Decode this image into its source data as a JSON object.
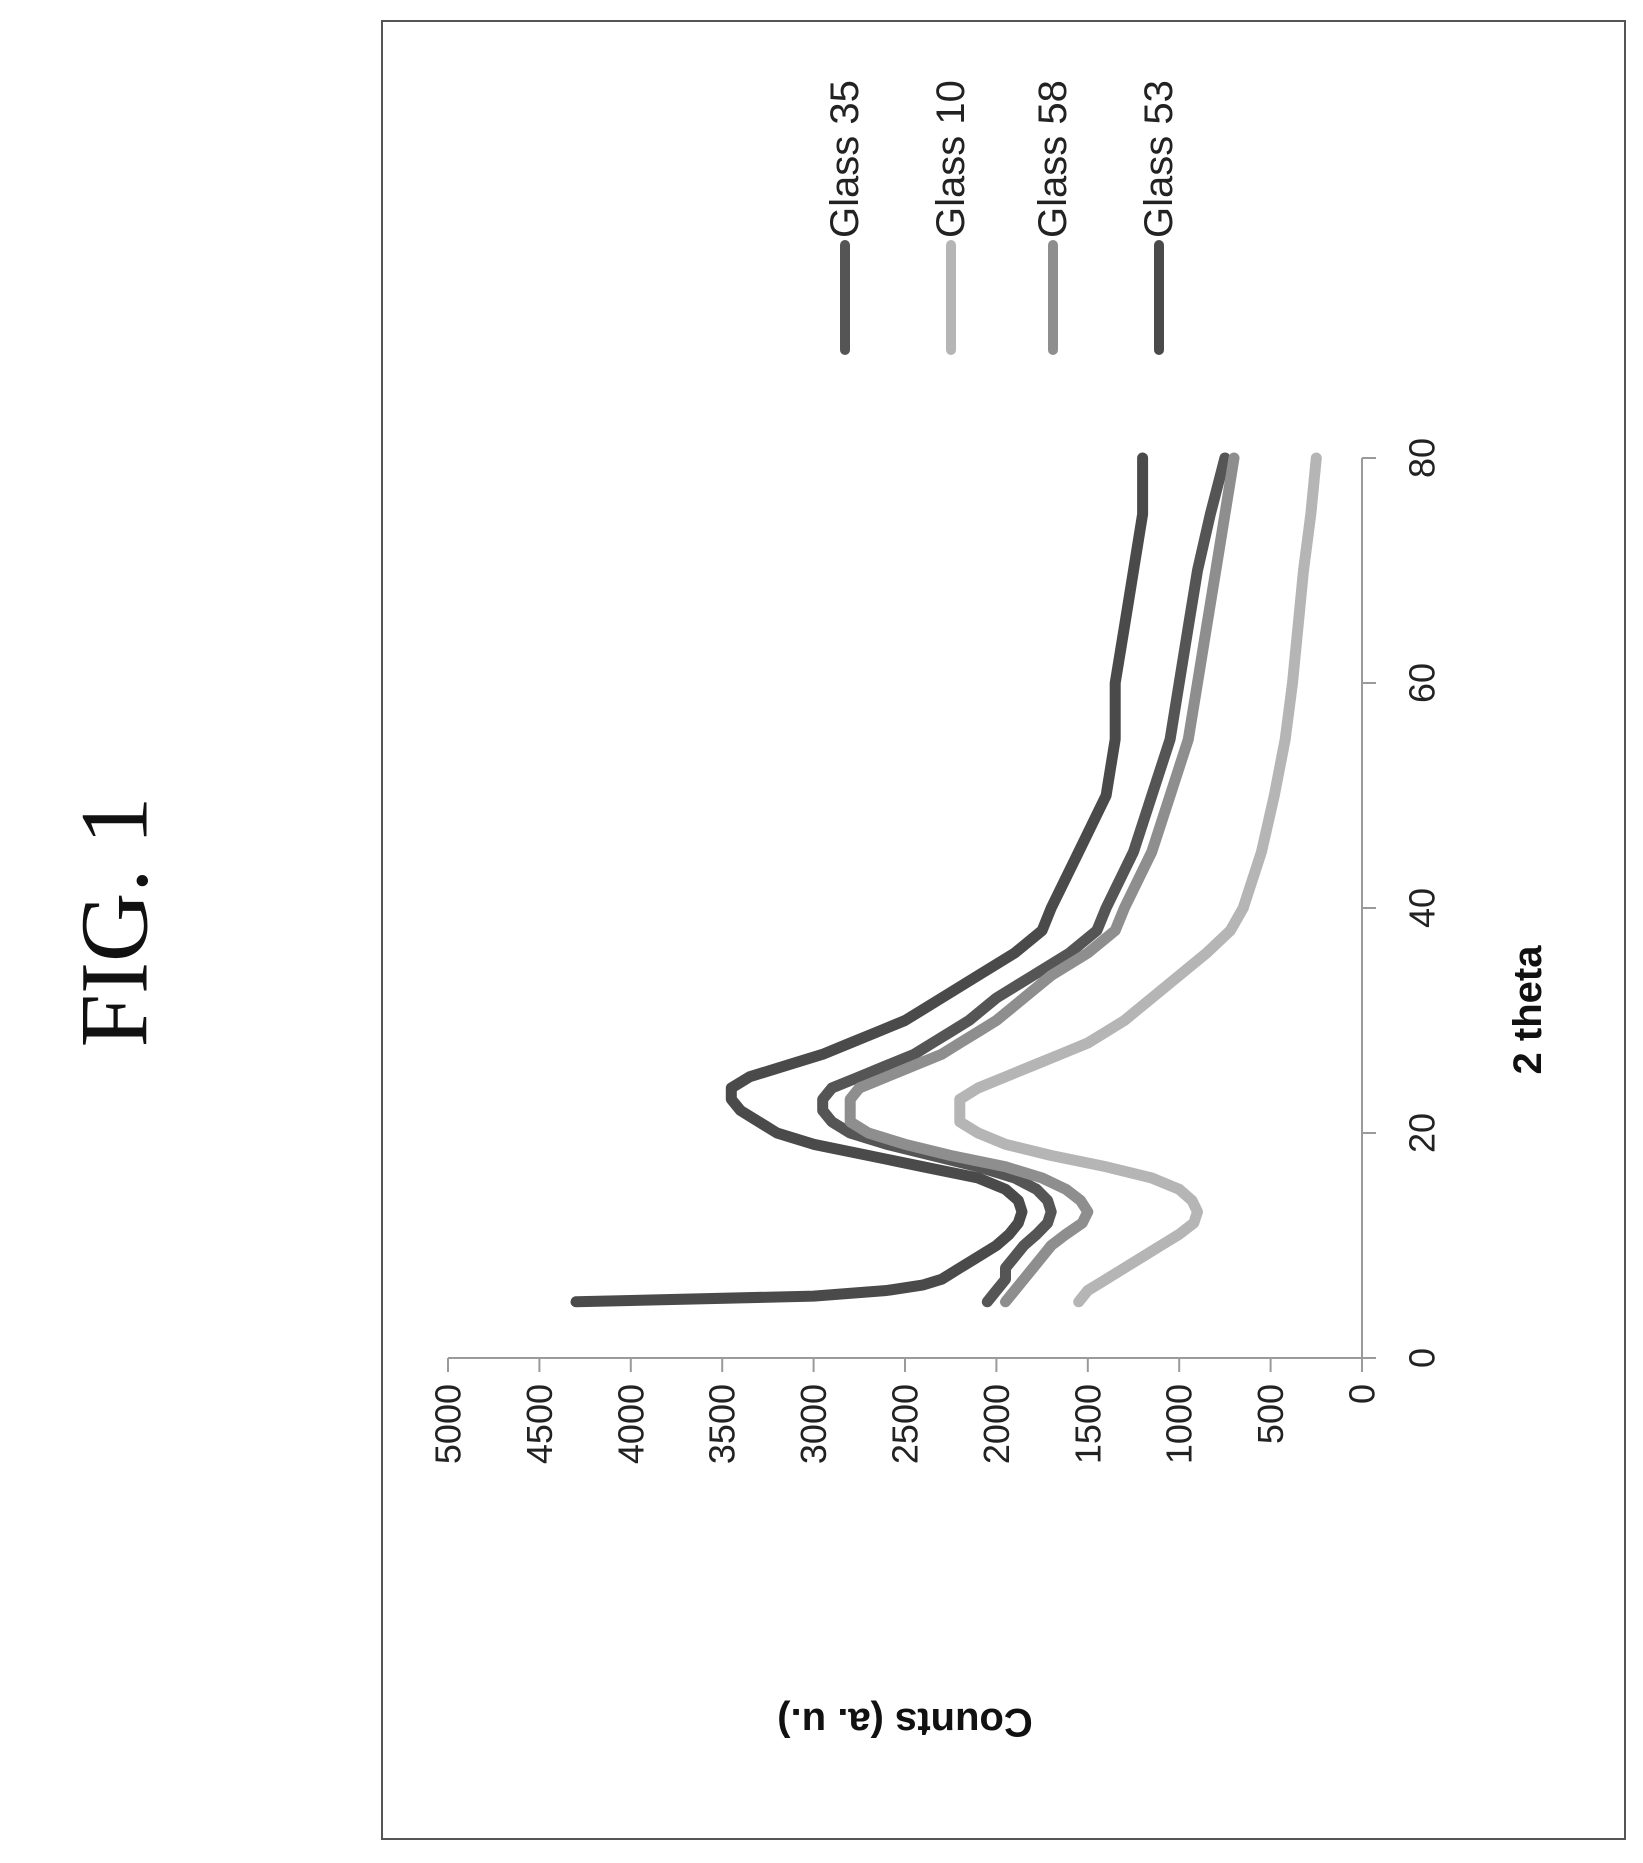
{
  "figure_label": "FIG. 1",
  "chart_data": {
    "type": "line",
    "title": "",
    "xlabel": "2 theta",
    "ylabel": "Counts (a. u.)",
    "xlim": [
      0,
      80
    ],
    "ylim": [
      0,
      5000
    ],
    "x_ticks": [
      0,
      20,
      40,
      60,
      80
    ],
    "y_ticks": [
      0,
      500,
      1000,
      1500,
      2000,
      2500,
      3000,
      3500,
      4000,
      4500,
      5000
    ],
    "grid": false,
    "legend_position": "top-right",
    "orientation": "rotated-90-ccw",
    "series": [
      {
        "name": "Glass 35",
        "color": "#555555",
        "x": [
          5,
          6,
          7,
          8,
          9,
          10,
          11,
          12,
          13,
          14,
          15,
          16,
          17,
          18,
          19,
          20,
          21,
          22,
          23,
          24,
          25,
          26,
          27,
          28,
          29,
          30,
          32,
          34,
          36,
          38,
          40,
          45,
          50,
          55,
          60,
          65,
          70,
          75,
          80
        ],
        "y": [
          2050,
          2000,
          1950,
          1950,
          1900,
          1850,
          1780,
          1720,
          1700,
          1720,
          1780,
          1900,
          2100,
          2350,
          2600,
          2800,
          2900,
          2950,
          2950,
          2900,
          2750,
          2600,
          2450,
          2350,
          2250,
          2150,
          2000,
          1800,
          1600,
          1450,
          1400,
          1250,
          1150,
          1050,
          1000,
          950,
          900,
          830,
          750
        ]
      },
      {
        "name": "Glass 10",
        "color": "#b5b5b5",
        "x": [
          5,
          6,
          7,
          8,
          9,
          10,
          11,
          12,
          13,
          14,
          15,
          16,
          17,
          18,
          19,
          20,
          21,
          22,
          23,
          24,
          25,
          26,
          27,
          28,
          29,
          30,
          32,
          34,
          36,
          38,
          40,
          45,
          50,
          55,
          60,
          65,
          70,
          75,
          80
        ],
        "y": [
          1550,
          1500,
          1400,
          1300,
          1200,
          1100,
          1000,
          920,
          900,
          930,
          1000,
          1150,
          1400,
          1700,
          1950,
          2100,
          2200,
          2200,
          2200,
          2100,
          1950,
          1800,
          1650,
          1500,
          1400,
          1300,
          1150,
          1000,
          850,
          720,
          650,
          550,
          480,
          420,
          380,
          350,
          320,
          280,
          250
        ]
      },
      {
        "name": "Glass 58",
        "color": "#8e8e8e",
        "x": [
          5,
          6,
          7,
          8,
          9,
          10,
          11,
          12,
          13,
          14,
          15,
          16,
          17,
          18,
          19,
          20,
          21,
          22,
          23,
          24,
          25,
          26,
          27,
          28,
          29,
          30,
          32,
          34,
          36,
          38,
          40,
          45,
          50,
          55,
          60,
          65,
          70,
          75,
          80
        ],
        "y": [
          1950,
          1900,
          1850,
          1800,
          1750,
          1700,
          1620,
          1530,
          1500,
          1540,
          1620,
          1750,
          1950,
          2250,
          2500,
          2700,
          2800,
          2800,
          2800,
          2750,
          2600,
          2450,
          2300,
          2200,
          2100,
          2000,
          1850,
          1700,
          1500,
          1350,
          1300,
          1150,
          1050,
          950,
          900,
          850,
          800,
          750,
          700
        ]
      },
      {
        "name": "Glass 53",
        "color": "#4a4a4a",
        "x": [
          5,
          5.5,
          6,
          6.5,
          7,
          8,
          9,
          10,
          11,
          12,
          13,
          14,
          15,
          16,
          17,
          18,
          19,
          20,
          21,
          22,
          23,
          24,
          25,
          26,
          27,
          28,
          29,
          30,
          32,
          34,
          36,
          38,
          40,
          45,
          50,
          55,
          60,
          65,
          70,
          75,
          80
        ],
        "y": [
          4300,
          3000,
          2600,
          2400,
          2300,
          2200,
          2100,
          2000,
          1930,
          1880,
          1860,
          1880,
          1950,
          2100,
          2400,
          2700,
          3000,
          3200,
          3300,
          3400,
          3450,
          3450,
          3350,
          3150,
          2950,
          2800,
          2650,
          2500,
          2300,
          2100,
          1900,
          1750,
          1700,
          1550,
          1400,
          1350,
          1350,
          1300,
          1250,
          1200,
          1200
        ]
      }
    ]
  }
}
